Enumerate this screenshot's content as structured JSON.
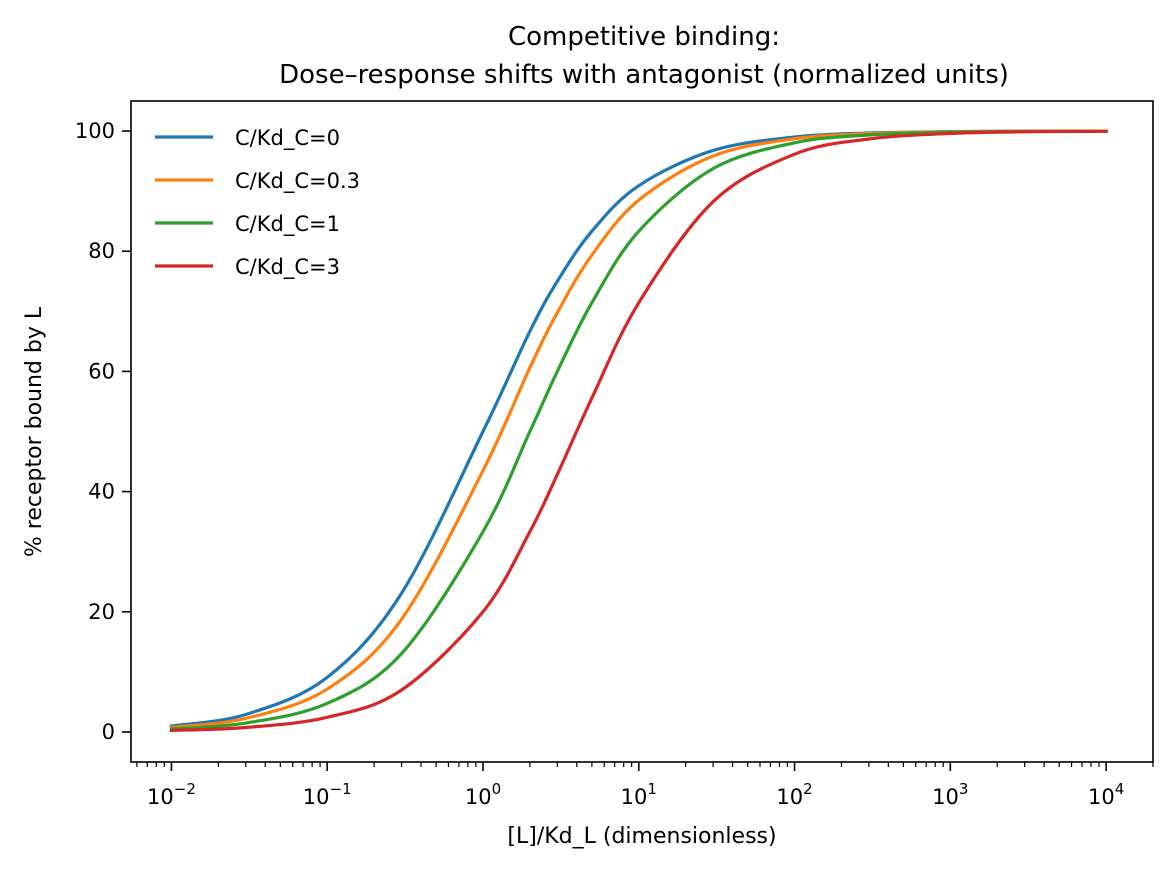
{
  "chart_data": {
    "type": "line",
    "title": "Competitive binding:",
    "subtitle": "Dose–response shifts with antagonist (normalized units)",
    "xlabel": "[L]/Kd_L (dimensionless)",
    "ylabel": "% receptor bound by L",
    "x_scale": "log",
    "xlim": [
      0.0055,
      20000
    ],
    "ylim": [
      -5,
      105
    ],
    "x_ticks": [
      0.01,
      0.1,
      1,
      10,
      100,
      1000,
      10000
    ],
    "x_tick_labels": [
      {
        "base": "10",
        "exp": "−2"
      },
      {
        "base": "10",
        "exp": "−1"
      },
      {
        "base": "10",
        "exp": "0"
      },
      {
        "base": "10",
        "exp": "1"
      },
      {
        "base": "10",
        "exp": "2"
      },
      {
        "base": "10",
        "exp": "3"
      },
      {
        "base": "10",
        "exp": "4"
      }
    ],
    "y_ticks": [
      0,
      20,
      40,
      60,
      80,
      100
    ],
    "y_tick_labels": [
      "0",
      "20",
      "40",
      "60",
      "80",
      "100"
    ],
    "grid": false,
    "legend_position": "top-left",
    "x": [
      0.01,
      0.03,
      0.1,
      0.3,
      1,
      2,
      3,
      5,
      10,
      30,
      100,
      300,
      1000,
      3000,
      10000
    ],
    "series": [
      {
        "name": "C/Kd_C=0",
        "color": "#1f77b4",
        "values": [
          0.99,
          2.91,
          9.09,
          23.08,
          50.0,
          66.67,
          75.0,
          83.33,
          90.91,
          96.77,
          99.01,
          99.67,
          99.9,
          99.97,
          99.99
        ]
      },
      {
        "name": "C/Kd_C=0.3",
        "color": "#ff7f0e",
        "values": [
          0.76,
          2.26,
          7.14,
          18.75,
          43.48,
          60.61,
          69.77,
          79.37,
          88.5,
          95.85,
          98.72,
          99.57,
          99.87,
          99.96,
          99.99
        ]
      },
      {
        "name": "C/Kd_C=1",
        "color": "#2ca02c",
        "values": [
          0.5,
          1.48,
          4.76,
          13.04,
          33.33,
          50.0,
          60.0,
          71.43,
          83.33,
          93.75,
          98.04,
          99.34,
          99.8,
          99.93,
          99.98
        ]
      },
      {
        "name": "C/Kd_C=3",
        "color": "#d62728",
        "values": [
          0.25,
          0.74,
          2.44,
          6.98,
          20.0,
          33.33,
          42.86,
          55.56,
          71.43,
          88.24,
          96.15,
          98.68,
          99.6,
          99.87,
          99.96
        ]
      }
    ]
  }
}
